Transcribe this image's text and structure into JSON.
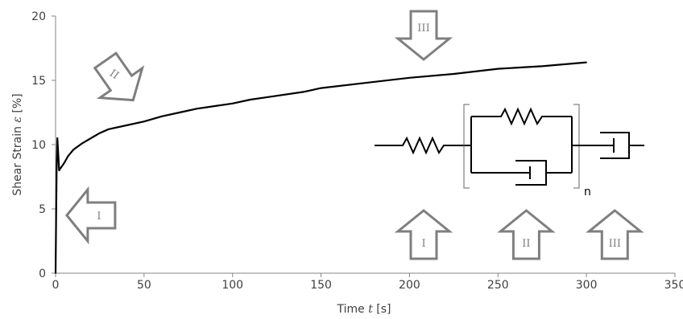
{
  "chart_data": {
    "type": "line",
    "title": "",
    "xlabel_prefix": "Time ",
    "xlabel_var": "t",
    "xlabel_suffix": " [s]",
    "ylabel_prefix": "Shear Strain ",
    "ylabel_var": "ε",
    "ylabel_suffix": " [%]",
    "xlim": [
      0,
      350
    ],
    "ylim": [
      0,
      20
    ],
    "x_ticks": [
      "0",
      "50",
      "100",
      "150",
      "200",
      "250",
      "300",
      "350"
    ],
    "y_ticks": [
      "0",
      "5",
      "10",
      "15",
      "20"
    ],
    "grid": false,
    "series": [
      {
        "x": [
          0,
          0.3,
          0.6,
          1,
          1.5,
          2,
          3,
          4,
          5,
          7,
          10,
          15,
          20,
          25,
          30,
          40,
          50,
          60,
          70,
          80,
          90,
          100,
          110,
          120,
          140,
          150,
          175,
          200,
          225,
          250,
          275,
          300
        ],
        "y": [
          0,
          4.5,
          8,
          10.5,
          9.3,
          8.0,
          8.2,
          8.4,
          8.6,
          9.1,
          9.6,
          10.1,
          10.5,
          10.9,
          11.2,
          11.5,
          11.8,
          12.2,
          12.5,
          12.8,
          13.0,
          13.2,
          13.5,
          13.7,
          14.1,
          14.4,
          14.8,
          15.2,
          15.5,
          15.9,
          16.1,
          16.4
        ]
      }
    ],
    "annotations": {
      "arrows": [
        {
          "label": "I",
          "direction": "left",
          "at_x": 20,
          "at_y": 4.5
        },
        {
          "label": "II",
          "direction": "down-right",
          "at_x": 36,
          "at_y": 15
        },
        {
          "label": "III",
          "direction": "down",
          "at_x": 208,
          "at_y": 18.5
        },
        {
          "label": "I",
          "direction": "up",
          "at_x": 208,
          "at_y": 3
        },
        {
          "label": "II",
          "direction": "up",
          "at_x": 266,
          "at_y": 3
        },
        {
          "label": "III",
          "direction": "up",
          "at_x": 316,
          "at_y": 3
        }
      ],
      "model_label": "n"
    }
  }
}
